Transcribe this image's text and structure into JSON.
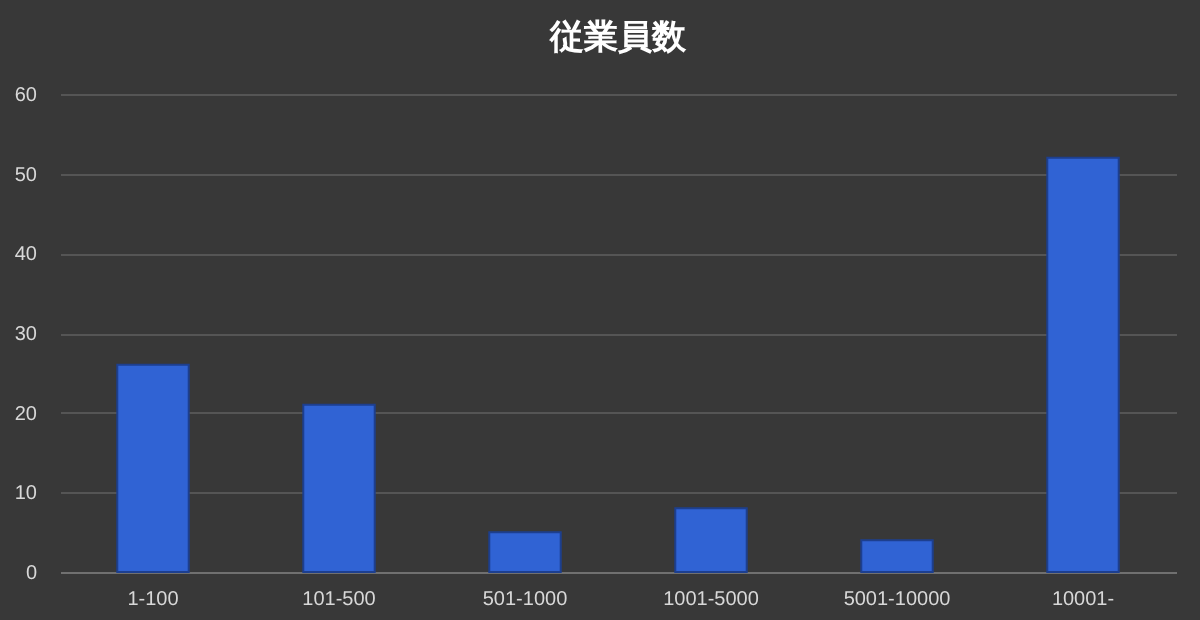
{
  "chart_data": {
    "type": "bar",
    "title": "従業員数",
    "categories": [
      "1-100",
      "101-500",
      "501-1000",
      "1001-5000",
      "5001-10000",
      "10001-"
    ],
    "values": [
      26,
      21,
      5,
      8,
      4,
      52
    ],
    "color": "#3063d4",
    "ylim": [
      0,
      60
    ],
    "yticks": [
      0,
      10,
      20,
      30,
      40,
      50,
      60
    ],
    "grid": "y"
  }
}
